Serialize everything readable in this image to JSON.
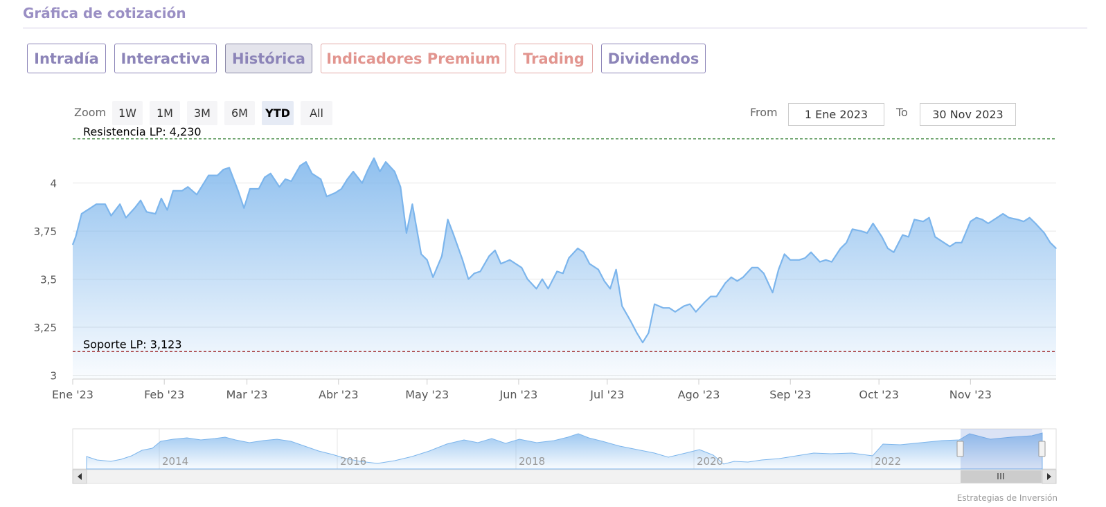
{
  "section": {
    "title": "Gráfica de cotización"
  },
  "tabs": [
    {
      "label": "Intradía",
      "active": false,
      "premium": false
    },
    {
      "label": "Interactiva",
      "active": false,
      "premium": false
    },
    {
      "label": "Histórica",
      "active": true,
      "premium": false
    },
    {
      "label": "Indicadores Premium",
      "active": false,
      "premium": true
    },
    {
      "label": "Trading",
      "active": false,
      "premium": true
    },
    {
      "label": "Dividendos",
      "active": false,
      "premium": false
    }
  ],
  "range_selector": {
    "zoom_label": "Zoom",
    "buttons": [
      "1W",
      "1M",
      "3M",
      "6M",
      "YTD",
      "All"
    ],
    "selected": "YTD",
    "from_label": "From",
    "from_value": "1 Ene 2023",
    "to_label": "To",
    "to_value": "30 Nov 2023"
  },
  "credit": "Estrategias de Inversión",
  "colors": {
    "line": "#7cb5ec",
    "fill_top": "#7cb5ec",
    "resistance": "#2a7a2a",
    "support": "#9a1b1b"
  },
  "chart_data": {
    "type": "area",
    "title": "",
    "ylim": [
      2.98,
      4.24
    ],
    "y_ticks": [
      {
        "value": 3,
        "label": "3"
      },
      {
        "value": 3.25,
        "label": "3,25"
      },
      {
        "value": 3.5,
        "label": "3,5"
      },
      {
        "value": 3.75,
        "label": "3,75"
      },
      {
        "value": 4,
        "label": "4"
      }
    ],
    "x_ticks": [
      {
        "date": "2023-01-01",
        "label": "Ene '23"
      },
      {
        "date": "2023-02-01",
        "label": "Feb '23"
      },
      {
        "date": "2023-03-01",
        "label": "Mar '23"
      },
      {
        "date": "2023-04-01",
        "label": "Abr '23"
      },
      {
        "date": "2023-05-01",
        "label": "May '23"
      },
      {
        "date": "2023-06-01",
        "label": "Jun '23"
      },
      {
        "date": "2023-07-01",
        "label": "Jul '23"
      },
      {
        "date": "2023-08-01",
        "label": "Ago '23"
      },
      {
        "date": "2023-09-01",
        "label": "Sep '23"
      },
      {
        "date": "2023-10-01",
        "label": "Oct '23"
      },
      {
        "date": "2023-11-01",
        "label": "Nov '23"
      }
    ],
    "x_range": [
      "2023-01-01",
      "2023-11-30"
    ],
    "plot_lines": [
      {
        "label": "Resistencia LP: 4,230",
        "value": 4.23,
        "style": "dashed",
        "color_key": "resistance"
      },
      {
        "label": "Soporte LP: 3,123",
        "value": 3.123,
        "style": "dashed",
        "color_key": "support"
      }
    ],
    "series": [
      {
        "points": [
          [
            "2023-01-01",
            3.68
          ],
          [
            "2023-01-02",
            3.72
          ],
          [
            "2023-01-04",
            3.84
          ],
          [
            "2023-01-07",
            3.87
          ],
          [
            "2023-01-09",
            3.89
          ],
          [
            "2023-01-12",
            3.89
          ],
          [
            "2023-01-14",
            3.83
          ],
          [
            "2023-01-17",
            3.89
          ],
          [
            "2023-01-19",
            3.82
          ],
          [
            "2023-01-22",
            3.87
          ],
          [
            "2023-01-24",
            3.91
          ],
          [
            "2023-01-26",
            3.85
          ],
          [
            "2023-01-29",
            3.84
          ],
          [
            "2023-01-31",
            3.92
          ],
          [
            "2023-02-02",
            3.86
          ],
          [
            "2023-02-04",
            3.96
          ],
          [
            "2023-02-07",
            3.96
          ],
          [
            "2023-02-09",
            3.98
          ],
          [
            "2023-02-12",
            3.94
          ],
          [
            "2023-02-16",
            4.04
          ],
          [
            "2023-02-19",
            4.04
          ],
          [
            "2023-02-21",
            4.07
          ],
          [
            "2023-02-23",
            4.08
          ],
          [
            "2023-02-26",
            3.96
          ],
          [
            "2023-02-28",
            3.87
          ],
          [
            "2023-03-02",
            3.97
          ],
          [
            "2023-03-05",
            3.97
          ],
          [
            "2023-03-07",
            4.03
          ],
          [
            "2023-03-09",
            4.05
          ],
          [
            "2023-03-12",
            3.98
          ],
          [
            "2023-03-14",
            4.02
          ],
          [
            "2023-03-16",
            4.01
          ],
          [
            "2023-03-19",
            4.09
          ],
          [
            "2023-03-21",
            4.11
          ],
          [
            "2023-03-23",
            4.05
          ],
          [
            "2023-03-26",
            4.02
          ],
          [
            "2023-03-28",
            3.93
          ],
          [
            "2023-03-31",
            3.95
          ],
          [
            "2023-04-02",
            3.97
          ],
          [
            "2023-04-04",
            4.02
          ],
          [
            "2023-04-06",
            4.06
          ],
          [
            "2023-04-09",
            4.0
          ],
          [
            "2023-04-11",
            4.07
          ],
          [
            "2023-04-13",
            4.13
          ],
          [
            "2023-04-15",
            4.06
          ],
          [
            "2023-04-17",
            4.11
          ],
          [
            "2023-04-20",
            4.06
          ],
          [
            "2023-04-22",
            3.98
          ],
          [
            "2023-04-24",
            3.74
          ],
          [
            "2023-04-26",
            3.89
          ],
          [
            "2023-04-29",
            3.63
          ],
          [
            "2023-05-01",
            3.6
          ],
          [
            "2023-05-03",
            3.51
          ],
          [
            "2023-05-06",
            3.62
          ],
          [
            "2023-05-08",
            3.81
          ],
          [
            "2023-05-10",
            3.73
          ],
          [
            "2023-05-13",
            3.6
          ],
          [
            "2023-05-15",
            3.5
          ],
          [
            "2023-05-17",
            3.53
          ],
          [
            "2023-05-19",
            3.54
          ],
          [
            "2023-05-22",
            3.62
          ],
          [
            "2023-05-24",
            3.65
          ],
          [
            "2023-05-26",
            3.58
          ],
          [
            "2023-05-29",
            3.6
          ],
          [
            "2023-05-31",
            3.58
          ],
          [
            "2023-06-02",
            3.56
          ],
          [
            "2023-06-04",
            3.5
          ],
          [
            "2023-06-07",
            3.45
          ],
          [
            "2023-06-09",
            3.5
          ],
          [
            "2023-06-11",
            3.45
          ],
          [
            "2023-06-14",
            3.54
          ],
          [
            "2023-06-16",
            3.53
          ],
          [
            "2023-06-18",
            3.61
          ],
          [
            "2023-06-21",
            3.66
          ],
          [
            "2023-06-23",
            3.64
          ],
          [
            "2023-06-25",
            3.58
          ],
          [
            "2023-06-28",
            3.55
          ],
          [
            "2023-06-30",
            3.49
          ],
          [
            "2023-07-02",
            3.45
          ],
          [
            "2023-07-04",
            3.55
          ],
          [
            "2023-07-06",
            3.36
          ],
          [
            "2023-07-09",
            3.28
          ],
          [
            "2023-07-11",
            3.22
          ],
          [
            "2023-07-13",
            3.17
          ],
          [
            "2023-07-15",
            3.22
          ],
          [
            "2023-07-17",
            3.37
          ],
          [
            "2023-07-20",
            3.35
          ],
          [
            "2023-07-22",
            3.35
          ],
          [
            "2023-07-24",
            3.33
          ],
          [
            "2023-07-27",
            3.36
          ],
          [
            "2023-07-29",
            3.37
          ],
          [
            "2023-07-31",
            3.33
          ],
          [
            "2023-08-03",
            3.38
          ],
          [
            "2023-08-05",
            3.41
          ],
          [
            "2023-08-07",
            3.41
          ],
          [
            "2023-08-10",
            3.48
          ],
          [
            "2023-08-12",
            3.51
          ],
          [
            "2023-08-14",
            3.49
          ],
          [
            "2023-08-16",
            3.51
          ],
          [
            "2023-08-19",
            3.56
          ],
          [
            "2023-08-21",
            3.56
          ],
          [
            "2023-08-23",
            3.53
          ],
          [
            "2023-08-26",
            3.43
          ],
          [
            "2023-08-28",
            3.55
          ],
          [
            "2023-08-30",
            3.63
          ],
          [
            "2023-09-01",
            3.6
          ],
          [
            "2023-09-04",
            3.6
          ],
          [
            "2023-09-06",
            3.61
          ],
          [
            "2023-09-08",
            3.64
          ],
          [
            "2023-09-11",
            3.59
          ],
          [
            "2023-09-13",
            3.6
          ],
          [
            "2023-09-15",
            3.59
          ],
          [
            "2023-09-18",
            3.66
          ],
          [
            "2023-09-20",
            3.69
          ],
          [
            "2023-09-22",
            3.76
          ],
          [
            "2023-09-25",
            3.75
          ],
          [
            "2023-09-27",
            3.74
          ],
          [
            "2023-09-29",
            3.79
          ],
          [
            "2023-10-02",
            3.72
          ],
          [
            "2023-10-04",
            3.66
          ],
          [
            "2023-10-06",
            3.64
          ],
          [
            "2023-10-09",
            3.73
          ],
          [
            "2023-10-11",
            3.72
          ],
          [
            "2023-10-13",
            3.81
          ],
          [
            "2023-10-16",
            3.8
          ],
          [
            "2023-10-18",
            3.82
          ],
          [
            "2023-10-20",
            3.72
          ],
          [
            "2023-10-23",
            3.69
          ],
          [
            "2023-10-25",
            3.67
          ],
          [
            "2023-10-27",
            3.69
          ],
          [
            "2023-10-29",
            3.69
          ],
          [
            "2023-11-01",
            3.8
          ],
          [
            "2023-11-03",
            3.82
          ],
          [
            "2023-11-05",
            3.81
          ],
          [
            "2023-11-07",
            3.79
          ],
          [
            "2023-11-10",
            3.82
          ],
          [
            "2023-11-12",
            3.84
          ],
          [
            "2023-11-14",
            3.82
          ],
          [
            "2023-11-17",
            3.81
          ],
          [
            "2023-11-19",
            3.8
          ],
          [
            "2023-11-21",
            3.82
          ],
          [
            "2023-11-23",
            3.79
          ],
          [
            "2023-11-26",
            3.74
          ],
          [
            "2023-11-28",
            3.69
          ],
          [
            "2023-11-30",
            3.66
          ]
        ]
      }
    ]
  }
}
